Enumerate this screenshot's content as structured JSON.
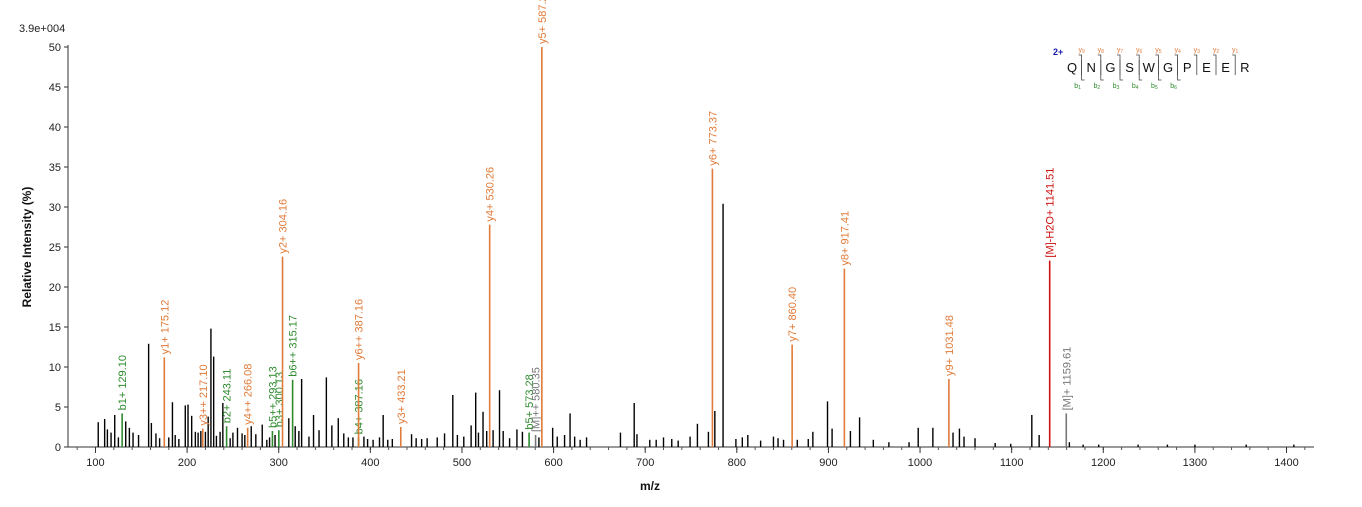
{
  "chart_data": {
    "type": "bar",
    "scale_label": "3.9e+004",
    "xlabel": "m/z",
    "ylabel": "Relative   Intensity (%)",
    "xlim": [
      70,
      1430
    ],
    "ylim": [
      0,
      50
    ],
    "x_ticks": [
      100,
      200,
      300,
      400,
      500,
      600,
      700,
      800,
      900,
      1000,
      1100,
      1200,
      1300,
      1400
    ],
    "y_ticks": [
      0,
      5,
      10,
      15,
      20,
      25,
      30,
      35,
      40,
      45,
      50
    ],
    "colors": {
      "y_ion": "#E07B39",
      "b_ion": "#2E8B2E",
      "precursor_water": "#CC1111",
      "precursor": "#777777",
      "unlabeled": "#000000",
      "charge": "#1A1AAA"
    },
    "annotated_peaks": [
      {
        "mz": 129.1,
        "intensity": 4.2,
        "label": "b1+ 129.10",
        "ion": "b_ion"
      },
      {
        "mz": 175.12,
        "intensity": 11.2,
        "label": "y1+ 175.12",
        "ion": "y_ion"
      },
      {
        "mz": 217.1,
        "intensity": 2.3,
        "label": "y3++ 217.10",
        "ion": "y_ion"
      },
      {
        "mz": 243.11,
        "intensity": 2.6,
        "label": "b2+ 243.11",
        "ion": "b_ion"
      },
      {
        "mz": 266.08,
        "intensity": 2.4,
        "label": "y4++ 266.08",
        "ion": "y_ion"
      },
      {
        "mz": 293.13,
        "intensity": 2.0,
        "label": "b5++ 293.13",
        "ion": "b_ion"
      },
      {
        "mz": 300.13,
        "intensity": 2.1,
        "label": "b3+ 300.13",
        "ion": "b_ion"
      },
      {
        "mz": 304.16,
        "intensity": 23.8,
        "label": "y2+ 304.16",
        "ion": "y_ion"
      },
      {
        "mz": 315.17,
        "intensity": 8.4,
        "label": "b6++ 315.17",
        "ion": "b_ion"
      },
      {
        "mz": 387.16,
        "intensity": 1.2,
        "label": "b4+ 387.16",
        "ion": "b_ion"
      },
      {
        "mz": 387.16,
        "intensity": 10.5,
        "label": "y6++ 387.16",
        "ion": "y_ion"
      },
      {
        "mz": 433.21,
        "intensity": 2.5,
        "label": "y3+ 433.21",
        "ion": "y_ion"
      },
      {
        "mz": 530.26,
        "intensity": 27.8,
        "label": "y4+ 530.26",
        "ion": "y_ion"
      },
      {
        "mz": 573.28,
        "intensity": 1.8,
        "label": "b5+ 573.28",
        "ion": "b_ion"
      },
      {
        "mz": 580.35,
        "intensity": 1.5,
        "label": "[M]++ 580.35",
        "ion": "precursor"
      },
      {
        "mz": 587.2,
        "intensity": 50.0,
        "label": "y5+ 587.2",
        "ion": "y_ion"
      },
      {
        "mz": 773.37,
        "intensity": 34.8,
        "label": "y6+ 773.37",
        "ion": "y_ion"
      },
      {
        "mz": 860.4,
        "intensity": 12.8,
        "label": "y7+ 860.40",
        "ion": "y_ion"
      },
      {
        "mz": 917.41,
        "intensity": 22.3,
        "label": "y8+ 917.41",
        "ion": "y_ion"
      },
      {
        "mz": 1031.48,
        "intensity": 8.5,
        "label": "y9+ 1031.48",
        "ion": "y_ion"
      },
      {
        "mz": 1141.51,
        "intensity": 23.3,
        "label": "[M]-H2O+ 1141.51",
        "ion": "precursor_water"
      },
      {
        "mz": 1159.61,
        "intensity": 4.2,
        "label": "[M]+ 1159.61",
        "ion": "precursor"
      }
    ],
    "unlabeled_peaks": [
      [
        103,
        3.1
      ],
      [
        110,
        3.5
      ],
      [
        113,
        2.2
      ],
      [
        117,
        1.8
      ],
      [
        121,
        4.0
      ],
      [
        125,
        1.2
      ],
      [
        133,
        3.2
      ],
      [
        137,
        2.4
      ],
      [
        141,
        1.8
      ],
      [
        147,
        1.5
      ],
      [
        158,
        12.9
      ],
      [
        161,
        3.0
      ],
      [
        166,
        1.7
      ],
      [
        170,
        1.1
      ],
      [
        180,
        1.2
      ],
      [
        184,
        5.6
      ],
      [
        187,
        1.5
      ],
      [
        191,
        1.0
      ],
      [
        198,
        5.2
      ],
      [
        201,
        5.3
      ],
      [
        205,
        3.9
      ],
      [
        209,
        1.9
      ],
      [
        212,
        1.8
      ],
      [
        215,
        2.0
      ],
      [
        220,
        1.9
      ],
      [
        223,
        3.8
      ],
      [
        226,
        14.8
      ],
      [
        229,
        11.3
      ],
      [
        232,
        1.4
      ],
      [
        236,
        1.9
      ],
      [
        239,
        5.5
      ],
      [
        247,
        1.1
      ],
      [
        250,
        1.8
      ],
      [
        255,
        2.4
      ],
      [
        260,
        1.7
      ],
      [
        263,
        1.5
      ],
      [
        270,
        2.6
      ],
      [
        275,
        1.6
      ],
      [
        282,
        2.8
      ],
      [
        287,
        0.9
      ],
      [
        290,
        1.2
      ],
      [
        296,
        1.5
      ],
      [
        311,
        3.6
      ],
      [
        318,
        2.6
      ],
      [
        322,
        2.0
      ],
      [
        325,
        8.5
      ],
      [
        333,
        1.3
      ],
      [
        338,
        4.0
      ],
      [
        344,
        2.1
      ],
      [
        352,
        8.7
      ],
      [
        358,
        2.7
      ],
      [
        365,
        3.6
      ],
      [
        371,
        1.7
      ],
      [
        376,
        1.2
      ],
      [
        381,
        1.2
      ],
      [
        393,
        1.3
      ],
      [
        397,
        1.0
      ],
      [
        403,
        0.9
      ],
      [
        410,
        1.2
      ],
      [
        414,
        4.0
      ],
      [
        419,
        0.9
      ],
      [
        424,
        1.0
      ],
      [
        445,
        1.6
      ],
      [
        450,
        1.1
      ],
      [
        456,
        1.0
      ],
      [
        462,
        1.1
      ],
      [
        473,
        1.2
      ],
      [
        481,
        1.7
      ],
      [
        490,
        6.5
      ],
      [
        495,
        1.5
      ],
      [
        502,
        1.3
      ],
      [
        510,
        2.7
      ],
      [
        515,
        6.8
      ],
      [
        518,
        1.8
      ],
      [
        523,
        4.4
      ],
      [
        527,
        2.0
      ],
      [
        534,
        2.1
      ],
      [
        541,
        7.1
      ],
      [
        545,
        2.0
      ],
      [
        552,
        1.1
      ],
      [
        560,
        2.2
      ],
      [
        566,
        1.9
      ],
      [
        584,
        1.2
      ],
      [
        599,
        2.4
      ],
      [
        604,
        1.3
      ],
      [
        612,
        1.5
      ],
      [
        618,
        4.2
      ],
      [
        623,
        1.3
      ],
      [
        629,
        0.9
      ],
      [
        636,
        1.2
      ],
      [
        673,
        1.8
      ],
      [
        688,
        5.5
      ],
      [
        691,
        1.6
      ],
      [
        705,
        0.9
      ],
      [
        712,
        0.9
      ],
      [
        720,
        1.2
      ],
      [
        729,
        1.0
      ],
      [
        736,
        0.8
      ],
      [
        749,
        1.3
      ],
      [
        757,
        2.9
      ],
      [
        769,
        1.9
      ],
      [
        776,
        4.5
      ],
      [
        785,
        30.4
      ],
      [
        799,
        1.0
      ],
      [
        806,
        1.2
      ],
      [
        812,
        1.5
      ],
      [
        826,
        0.8
      ],
      [
        840,
        1.3
      ],
      [
        845,
        1.1
      ],
      [
        851,
        0.9
      ],
      [
        866,
        0.9
      ],
      [
        878,
        1.0
      ],
      [
        883,
        1.9
      ],
      [
        899,
        5.7
      ],
      [
        904,
        2.3
      ],
      [
        924,
        2.0
      ],
      [
        934,
        3.7
      ],
      [
        949,
        0.9
      ],
      [
        966,
        0.6
      ],
      [
        988,
        0.6
      ],
      [
        998,
        2.4
      ],
      [
        1014,
        2.4
      ],
      [
        1036,
        1.8
      ],
      [
        1043,
        2.3
      ],
      [
        1048,
        1.3
      ],
      [
        1060,
        1.1
      ],
      [
        1082,
        0.5
      ],
      [
        1099,
        0.4
      ],
      [
        1122,
        4.0
      ],
      [
        1130,
        1.5
      ],
      [
        1163,
        0.6
      ],
      [
        1178,
        0.3
      ],
      [
        1195,
        0.3
      ],
      [
        1238,
        0.3
      ],
      [
        1270,
        0.3
      ],
      [
        1300,
        0.3
      ],
      [
        1356,
        0.3
      ],
      [
        1408,
        0.3
      ]
    ],
    "sequence_annotation": {
      "charge": "2+",
      "residues": [
        "Q",
        "N",
        "G",
        "S",
        "W",
        "G",
        "P",
        "E",
        "E",
        "R"
      ],
      "y_ions_top": [
        {
          "main": "y",
          "sub": "9"
        },
        {
          "main": "y",
          "sub": "8"
        },
        {
          "main": "y",
          "sub": "7"
        },
        {
          "main": "y",
          "sub": "6"
        },
        {
          "main": "y",
          "sub": "5"
        },
        {
          "main": "y",
          "sub": "4"
        },
        {
          "main": "y",
          "sub": "3"
        },
        {
          "main": "y",
          "sub": "2"
        },
        {
          "main": "y",
          "sub": "1"
        }
      ],
      "b_ions_bottom": [
        {
          "main": "b",
          "sub": "1"
        },
        {
          "main": "b",
          "sub": "2"
        },
        {
          "main": "b",
          "sub": "3"
        },
        {
          "main": "b",
          "sub": "4"
        },
        {
          "main": "b",
          "sub": "5"
        },
        {
          "main": "b",
          "sub": "6"
        }
      ]
    }
  }
}
